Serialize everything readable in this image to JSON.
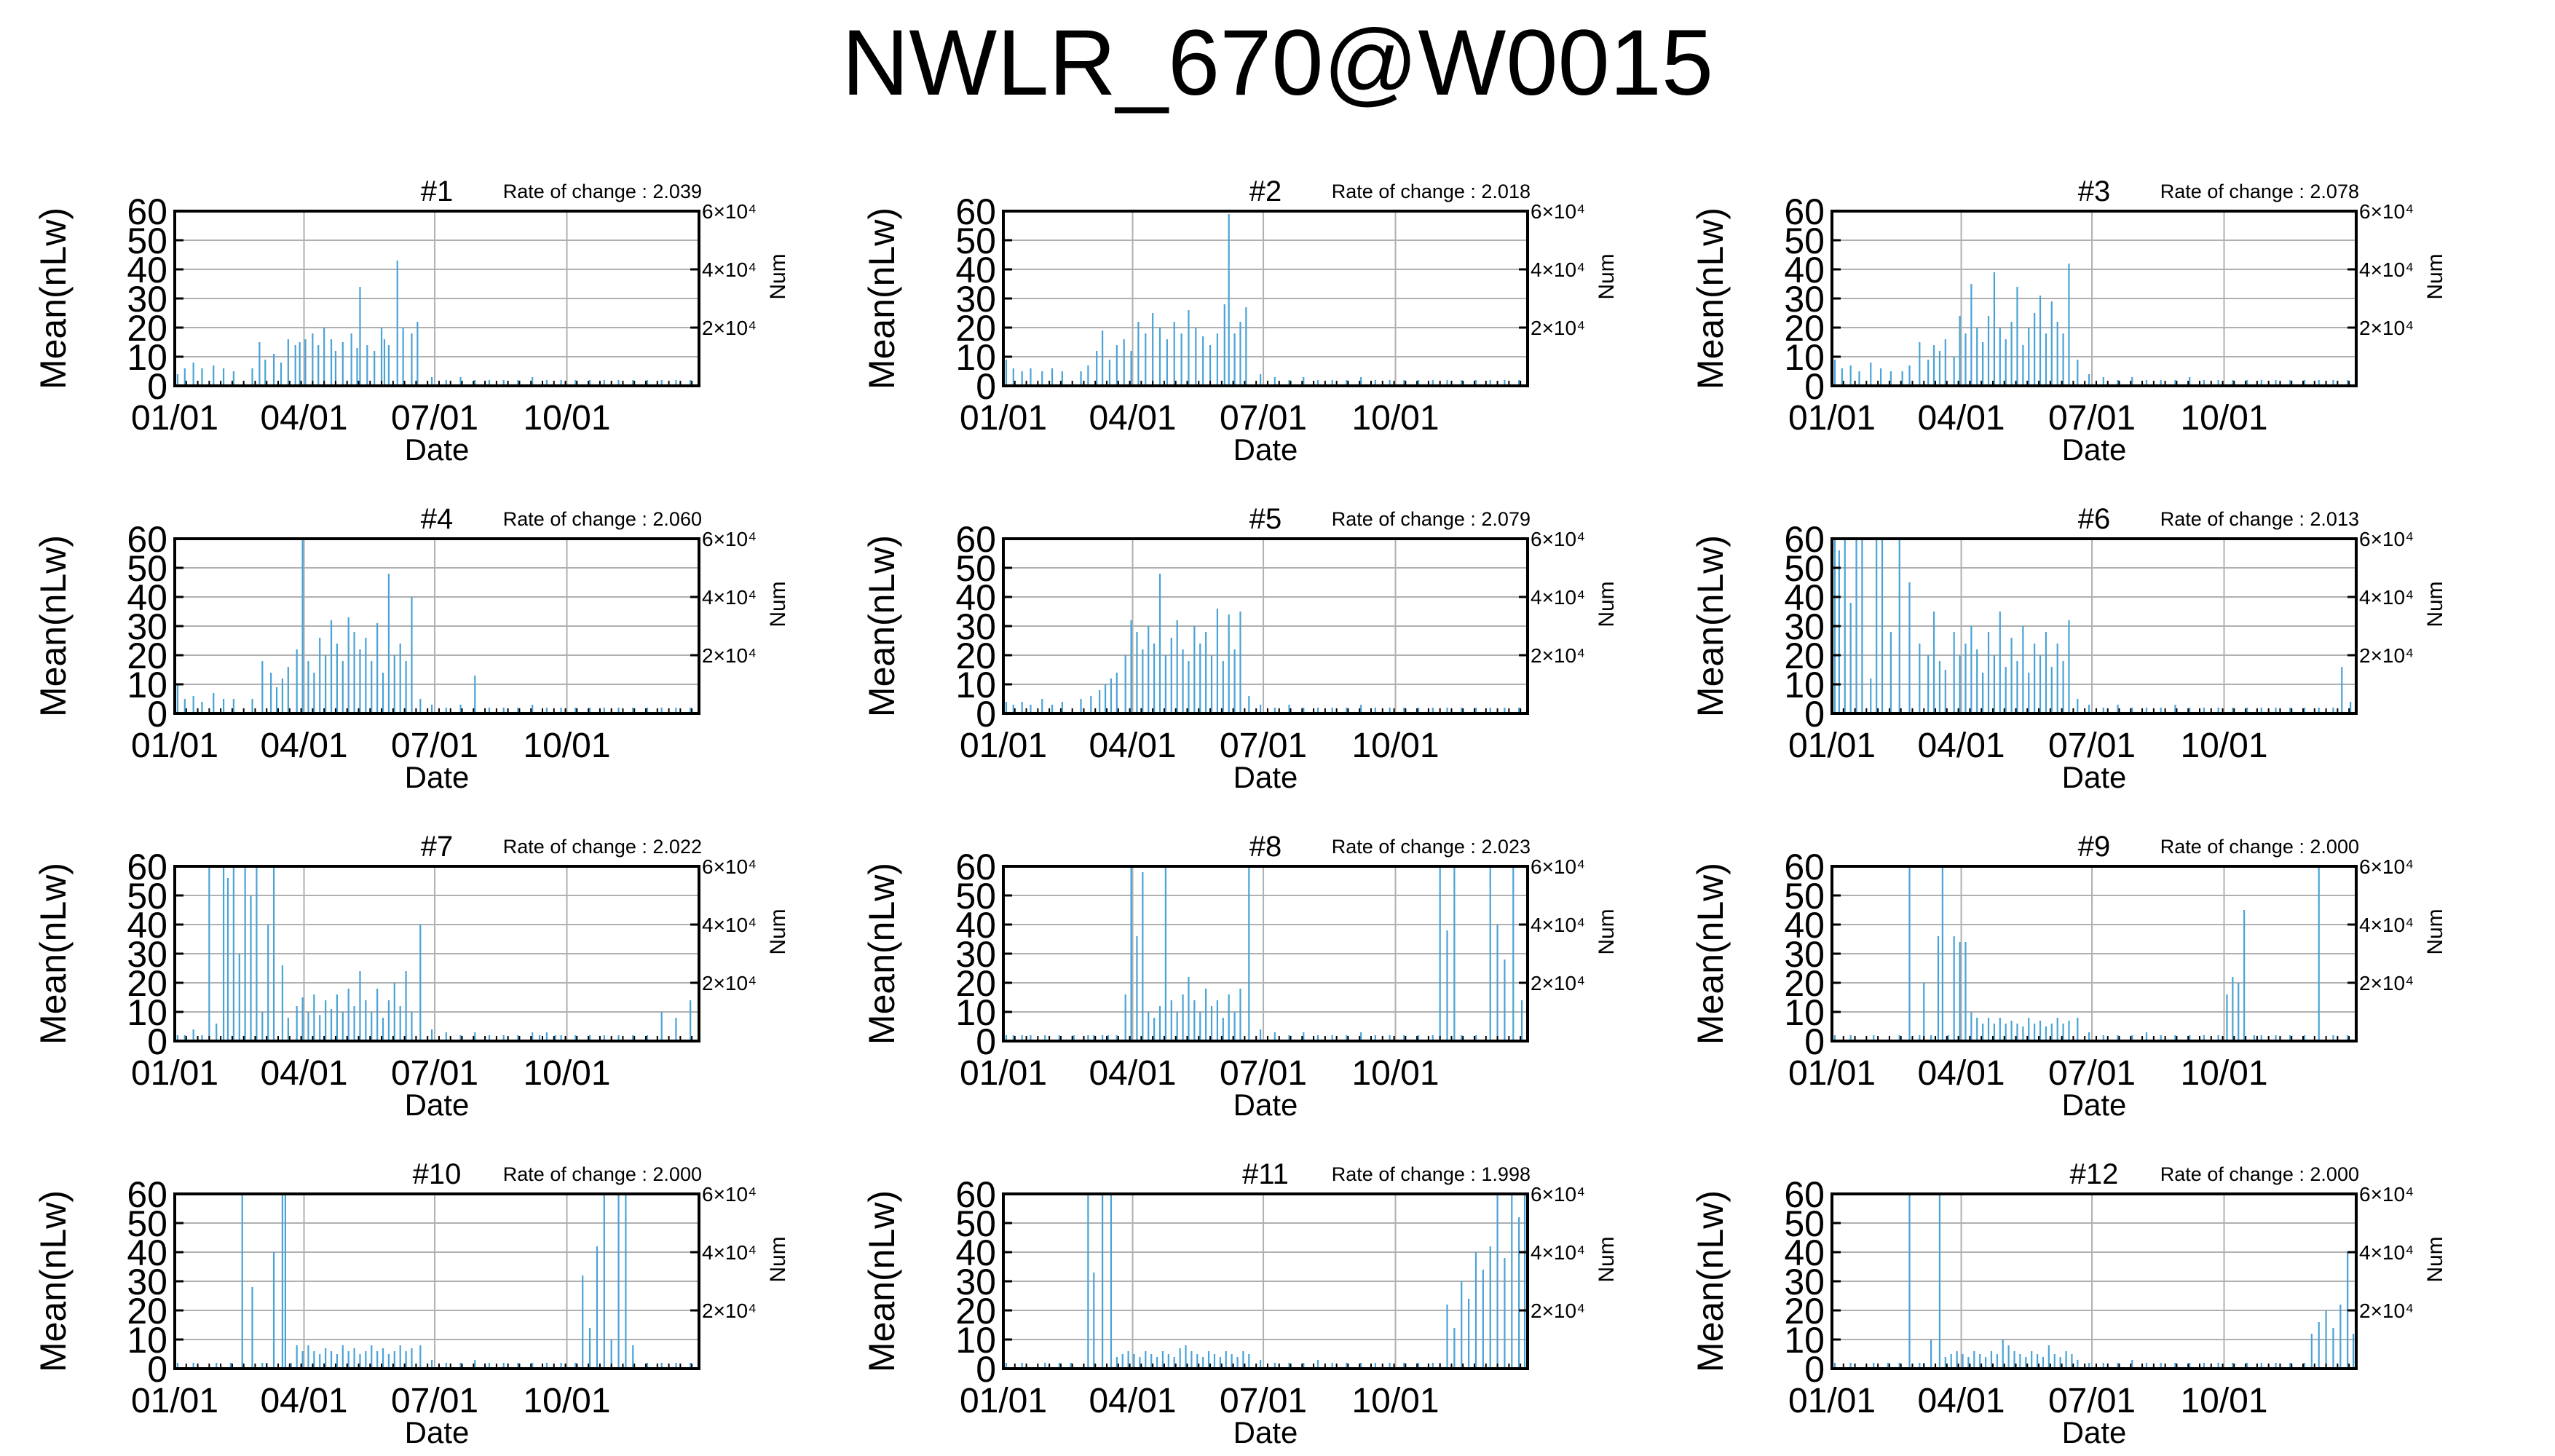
{
  "title": "NWLR_670@W0015",
  "colors": {
    "bar": "#4aa3d6",
    "axis": "#000000",
    "grid": "#b0b0b0"
  },
  "shared": {
    "xlabel": "Date",
    "ylabel": "Mean(nLw)",
    "y2label": "Num",
    "xticks": [
      {
        "doy": 1,
        "label": "01/01"
      },
      {
        "doy": 91,
        "label": "04/01"
      },
      {
        "doy": 182,
        "label": "07/01"
      },
      {
        "doy": 274,
        "label": "10/01"
      }
    ],
    "yticks": [
      0,
      10,
      20,
      30,
      40,
      50,
      60
    ],
    "y2ticks": [
      {
        "value": 20000,
        "label": "2×10⁴"
      },
      {
        "value": 40000,
        "label": "4×10⁴"
      },
      {
        "value": 60000,
        "label": "6×10⁴"
      }
    ],
    "xlim": [
      1,
      366
    ],
    "ylim": [
      0,
      60
    ],
    "y2lim": [
      0,
      60000
    ],
    "rate_prefix": "Rate of change : ",
    "grid": true
  },
  "chart_data": [
    {
      "type": "bar",
      "title": "#1",
      "rate": "2.039",
      "xlabel": "Date",
      "ylabel": "Mean(nLw)",
      "y2label": "Num",
      "x": [
        3,
        8,
        14,
        20,
        28,
        35,
        42,
        55,
        60,
        64,
        70,
        75,
        80,
        85,
        88,
        92,
        97,
        101,
        105,
        110,
        113,
        118,
        124,
        128,
        130,
        135,
        140,
        145,
        147,
        150,
        156,
        160,
        166,
        170,
        180,
        190,
        200,
        210,
        220,
        230,
        240,
        250,
        260,
        270,
        280,
        290,
        300,
        310,
        320,
        330,
        340,
        350,
        360
      ],
      "y": [
        4,
        6,
        8,
        6,
        7,
        6,
        5,
        6,
        15,
        9,
        11,
        8,
        16,
        14,
        15,
        16,
        18,
        14,
        20,
        16,
        12,
        15,
        18,
        13,
        34,
        14,
        12,
        20,
        16,
        14,
        43,
        20,
        18,
        22,
        3,
        2,
        3,
        2,
        2,
        2,
        2,
        3,
        2,
        2,
        2,
        2,
        2,
        2,
        2,
        2,
        2,
        2,
        2
      ]
    },
    {
      "type": "bar",
      "title": "#2",
      "rate": "2.018",
      "xlabel": "Date",
      "ylabel": "Mean(nLw)",
      "y2label": "Num",
      "x": [
        3,
        8,
        14,
        20,
        28,
        35,
        42,
        55,
        60,
        66,
        70,
        75,
        80,
        85,
        90,
        95,
        100,
        105,
        110,
        115,
        120,
        125,
        130,
        135,
        140,
        145,
        150,
        155,
        158,
        162,
        166,
        170,
        180,
        190,
        200,
        210,
        220,
        230,
        240,
        250,
        260,
        270,
        280,
        290,
        300,
        310,
        320,
        330,
        340,
        350,
        360
      ],
      "y": [
        9,
        6,
        5,
        6,
        5,
        6,
        5,
        5,
        7,
        12,
        19,
        9,
        14,
        16,
        12,
        22,
        18,
        25,
        20,
        16,
        22,
        18,
        26,
        20,
        17,
        14,
        18,
        28,
        59,
        18,
        22,
        27,
        4,
        3,
        2,
        3,
        2,
        2,
        2,
        3,
        2,
        2,
        2,
        2,
        2,
        2,
        2,
        2,
        2,
        2,
        2
      ]
    },
    {
      "type": "bar",
      "title": "#3",
      "rate": "2.078",
      "xlabel": "Date",
      "ylabel": "Mean(nLw)",
      "y2label": "Num",
      "x": [
        3,
        8,
        14,
        20,
        28,
        35,
        42,
        50,
        55,
        62,
        68,
        72,
        76,
        80,
        86,
        90,
        94,
        98,
        102,
        106,
        110,
        114,
        118,
        122,
        126,
        130,
        134,
        138,
        142,
        146,
        150,
        154,
        158,
        162,
        166,
        172,
        180,
        190,
        200,
        210,
        220,
        230,
        240,
        250,
        260,
        270,
        280,
        290,
        300,
        310,
        320,
        330,
        340,
        350,
        360
      ],
      "y": [
        9,
        6,
        7,
        5,
        8,
        6,
        5,
        5,
        7,
        15,
        9,
        14,
        12,
        16,
        10,
        24,
        18,
        35,
        20,
        15,
        24,
        39,
        20,
        16,
        22,
        34,
        14,
        20,
        25,
        31,
        18,
        29,
        22,
        18,
        42,
        9,
        4,
        3,
        2,
        3,
        2,
        2,
        2,
        3,
        2,
        2,
        2,
        2,
        2,
        2,
        2,
        2,
        2,
        2,
        2
      ]
    },
    {
      "type": "bar",
      "title": "#4",
      "rate": "2.060",
      "xlabel": "Date",
      "ylabel": "Mean(nLw)",
      "y2label": "Num",
      "x": [
        3,
        8,
        14,
        20,
        28,
        35,
        42,
        55,
        62,
        68,
        72,
        76,
        80,
        86,
        90,
        94,
        98,
        102,
        106,
        110,
        114,
        118,
        122,
        126,
        130,
        134,
        138,
        142,
        146,
        150,
        154,
        158,
        162,
        166,
        172,
        180,
        190,
        200,
        210,
        220,
        230,
        240,
        250,
        260,
        270,
        280,
        290,
        300,
        310,
        320,
        330,
        340,
        350,
        360
      ],
      "y": [
        10,
        5,
        6,
        4,
        7,
        5,
        5,
        5,
        18,
        14,
        9,
        12,
        16,
        22,
        60,
        18,
        14,
        26,
        20,
        32,
        24,
        18,
        33,
        28,
        22,
        26,
        18,
        31,
        14,
        48,
        20,
        24,
        18,
        40,
        5,
        3,
        2,
        3,
        13,
        2,
        2,
        2,
        3,
        2,
        2,
        2,
        2,
        2,
        2,
        2,
        2,
        2,
        2,
        2
      ]
    },
    {
      "type": "bar",
      "title": "#5",
      "rate": "2.079",
      "xlabel": "Date",
      "ylabel": "Mean(nLw)",
      "y2label": "Num",
      "x": [
        3,
        8,
        14,
        20,
        28,
        35,
        42,
        55,
        62,
        68,
        72,
        76,
        80,
        86,
        90,
        94,
        98,
        102,
        106,
        110,
        114,
        118,
        122,
        126,
        130,
        134,
        138,
        142,
        146,
        150,
        154,
        158,
        162,
        166,
        172,
        180,
        190,
        200,
        210,
        220,
        230,
        240,
        250,
        260,
        270,
        280,
        290,
        300,
        310,
        320,
        330,
        340,
        350,
        360
      ],
      "y": [
        4,
        3,
        4,
        3,
        5,
        3,
        4,
        5,
        6,
        8,
        10,
        12,
        14,
        20,
        32,
        28,
        22,
        30,
        24,
        48,
        20,
        26,
        32,
        22,
        18,
        30,
        24,
        28,
        20,
        36,
        18,
        34,
        22,
        35,
        6,
        3,
        2,
        3,
        2,
        2,
        2,
        2,
        3,
        2,
        2,
        2,
        2,
        2,
        2,
        2,
        2,
        2,
        2,
        2
      ]
    },
    {
      "type": "bar",
      "title": "#6",
      "rate": "2.013",
      "xlabel": "Date",
      "ylabel": "Mean(nLw)",
      "y2label": "Num",
      "x": [
        3,
        6,
        10,
        14,
        18,
        22,
        28,
        32,
        36,
        42,
        48,
        55,
        62,
        68,
        72,
        76,
        80,
        86,
        90,
        94,
        98,
        102,
        106,
        110,
        114,
        118,
        122,
        126,
        130,
        134,
        138,
        142,
        146,
        150,
        154,
        158,
        162,
        166,
        172,
        180,
        190,
        200,
        210,
        220,
        230,
        240,
        250,
        260,
        270,
        280,
        290,
        300,
        310,
        320,
        330,
        340,
        350,
        356,
        362
      ],
      "y": [
        60,
        56,
        60,
        38,
        60,
        60,
        12,
        60,
        60,
        28,
        60,
        45,
        24,
        20,
        35,
        18,
        15,
        28,
        20,
        24,
        30,
        22,
        14,
        28,
        20,
        35,
        16,
        26,
        18,
        30,
        14,
        24,
        20,
        28,
        16,
        24,
        18,
        32,
        5,
        3,
        2,
        3,
        2,
        2,
        2,
        3,
        2,
        2,
        2,
        2,
        2,
        2,
        2,
        2,
        2,
        2,
        2,
        16,
        4
      ]
    },
    {
      "type": "bar",
      "title": "#7",
      "rate": "2.022",
      "xlabel": "Date",
      "ylabel": "Mean(nLw)",
      "y2label": "Num",
      "x": [
        3,
        8,
        14,
        20,
        25,
        30,
        35,
        38,
        42,
        46,
        50,
        54,
        58,
        62,
        66,
        70,
        76,
        80,
        86,
        90,
        94,
        98,
        102,
        106,
        110,
        114,
        118,
        122,
        126,
        130,
        134,
        138,
        142,
        146,
        150,
        154,
        158,
        162,
        166,
        172,
        180,
        190,
        200,
        210,
        220,
        230,
        240,
        250,
        255,
        260,
        266,
        270,
        280,
        290,
        300,
        310,
        320,
        330,
        340,
        350,
        360
      ],
      "y": [
        2,
        2,
        4,
        2,
        60,
        6,
        60,
        56,
        60,
        30,
        60,
        50,
        60,
        10,
        40,
        60,
        26,
        8,
        12,
        15,
        10,
        16,
        9,
        14,
        11,
        16,
        10,
        18,
        12,
        24,
        14,
        10,
        18,
        8,
        14,
        20,
        12,
        24,
        10,
        40,
        4,
        3,
        2,
        3,
        2,
        2,
        2,
        3,
        2,
        3,
        2,
        2,
        2,
        2,
        2,
        2,
        2,
        2,
        10,
        8,
        14
      ]
    },
    {
      "type": "bar",
      "title": "#8",
      "rate": "2.023",
      "xlabel": "Date",
      "ylabel": "Mean(nLw)",
      "y2label": "Num",
      "x": [
        3,
        8,
        14,
        20,
        30,
        40,
        50,
        60,
        64,
        70,
        74,
        80,
        86,
        90,
        94,
        98,
        102,
        106,
        110,
        114,
        118,
        122,
        126,
        130,
        134,
        138,
        142,
        146,
        150,
        154,
        158,
        162,
        166,
        172,
        180,
        190,
        200,
        210,
        220,
        230,
        240,
        250,
        260,
        270,
        280,
        290,
        300,
        305,
        310,
        315,
        320,
        330,
        340,
        345,
        350,
        356,
        362
      ],
      "y": [
        2,
        2,
        2,
        2,
        2,
        2,
        2,
        2,
        2,
        2,
        2,
        2,
        16,
        60,
        36,
        58,
        10,
        8,
        12,
        60,
        14,
        10,
        16,
        22,
        14,
        10,
        18,
        12,
        14,
        8,
        16,
        10,
        18,
        60,
        4,
        3,
        2,
        3,
        2,
        2,
        2,
        3,
        2,
        2,
        2,
        2,
        2,
        60,
        38,
        60,
        2,
        2,
        60,
        40,
        28,
        60,
        14
      ]
    },
    {
      "type": "bar",
      "title": "#9",
      "rate": "2.000",
      "xlabel": "Date",
      "ylabel": "Mean(nLw)",
      "y2label": "Num",
      "x": [
        3,
        14,
        30,
        48,
        55,
        62,
        65,
        70,
        75,
        78,
        82,
        86,
        90,
        94,
        98,
        102,
        106,
        110,
        114,
        118,
        122,
        126,
        130,
        134,
        138,
        142,
        146,
        150,
        154,
        158,
        162,
        166,
        172,
        180,
        190,
        200,
        210,
        220,
        230,
        240,
        250,
        260,
        270,
        276,
        280,
        284,
        288,
        295,
        300,
        310,
        320,
        330,
        340,
        350,
        360
      ],
      "y": [
        2,
        2,
        2,
        2,
        60,
        2,
        20,
        2,
        36,
        60,
        2,
        36,
        34,
        34,
        10,
        8,
        6,
        8,
        6,
        8,
        6,
        7,
        6,
        5,
        8,
        6,
        7,
        5,
        6,
        8,
        6,
        7,
        8,
        3,
        2,
        2,
        2,
        3,
        2,
        2,
        2,
        2,
        2,
        16,
        22,
        20,
        45,
        2,
        2,
        2,
        2,
        2,
        60,
        2,
        2
      ]
    },
    {
      "type": "bar",
      "title": "#10",
      "rate": "2.000",
      "xlabel": "Date",
      "ylabel": "Mean(nLw)",
      "y2label": "Num",
      "x": [
        3,
        14,
        30,
        40,
        48,
        55,
        62,
        65,
        70,
        76,
        78,
        82,
        86,
        90,
        94,
        98,
        102,
        106,
        110,
        114,
        118,
        122,
        126,
        130,
        134,
        138,
        142,
        146,
        150,
        154,
        158,
        162,
        166,
        172,
        180,
        190,
        200,
        210,
        220,
        230,
        240,
        250,
        260,
        270,
        280,
        285,
        290,
        295,
        300,
        305,
        310,
        315,
        320,
        330,
        340,
        350,
        360
      ],
      "y": [
        2,
        2,
        2,
        2,
        60,
        28,
        2,
        2,
        40,
        60,
        60,
        2,
        8,
        6,
        8,
        6,
        5,
        7,
        6,
        5,
        8,
        6,
        7,
        5,
        6,
        8,
        6,
        7,
        5,
        6,
        8,
        6,
        7,
        8,
        3,
        2,
        2,
        3,
        2,
        2,
        2,
        2,
        2,
        2,
        2,
        32,
        14,
        42,
        60,
        10,
        60,
        60,
        8,
        2,
        2,
        2,
        2
      ]
    },
    {
      "type": "bar",
      "title": "#11",
      "rate": "1.998",
      "xlabel": "Date",
      "ylabel": "Mean(nLw)",
      "y2label": "Num",
      "x": [
        3,
        14,
        30,
        40,
        48,
        60,
        64,
        70,
        76,
        80,
        84,
        88,
        92,
        96,
        100,
        104,
        108,
        112,
        116,
        120,
        124,
        128,
        132,
        136,
        140,
        144,
        148,
        152,
        156,
        160,
        164,
        168,
        172,
        180,
        190,
        200,
        210,
        220,
        230,
        240,
        250,
        260,
        270,
        280,
        290,
        300,
        305,
        310,
        315,
        320,
        325,
        330,
        335,
        340,
        345,
        350,
        355,
        360,
        364
      ],
      "y": [
        2,
        2,
        2,
        2,
        2,
        60,
        33,
        60,
        60,
        4,
        5,
        6,
        5,
        4,
        6,
        5,
        4,
        6,
        5,
        4,
        7,
        8,
        6,
        5,
        4,
        6,
        5,
        4,
        6,
        5,
        4,
        6,
        5,
        3,
        2,
        2,
        2,
        3,
        2,
        2,
        2,
        2,
        2,
        2,
        2,
        2,
        2,
        22,
        14,
        30,
        24,
        40,
        34,
        42,
        60,
        38,
        60,
        52,
        60
      ]
    },
    {
      "type": "bar",
      "title": "#12",
      "rate": "2.000",
      "xlabel": "Date",
      "ylabel": "Mean(nLw)",
      "y2label": "Num",
      "x": [
        3,
        14,
        30,
        40,
        48,
        55,
        62,
        65,
        70,
        76,
        80,
        84,
        88,
        92,
        96,
        100,
        104,
        108,
        112,
        116,
        120,
        124,
        128,
        132,
        136,
        140,
        144,
        148,
        152,
        156,
        160,
        164,
        168,
        172,
        180,
        190,
        200,
        210,
        220,
        230,
        240,
        250,
        260,
        270,
        280,
        290,
        300,
        310,
        320,
        330,
        335,
        340,
        345,
        350,
        355,
        360,
        364
      ],
      "y": [
        2,
        2,
        2,
        2,
        2,
        60,
        2,
        2,
        10,
        60,
        4,
        5,
        6,
        5,
        4,
        6,
        5,
        4,
        6,
        5,
        10,
        8,
        6,
        5,
        4,
        6,
        5,
        4,
        8,
        5,
        4,
        6,
        5,
        3,
        2,
        2,
        2,
        3,
        2,
        2,
        2,
        2,
        2,
        2,
        2,
        2,
        2,
        2,
        2,
        2,
        12,
        16,
        20,
        14,
        22,
        40,
        12
      ]
    }
  ]
}
